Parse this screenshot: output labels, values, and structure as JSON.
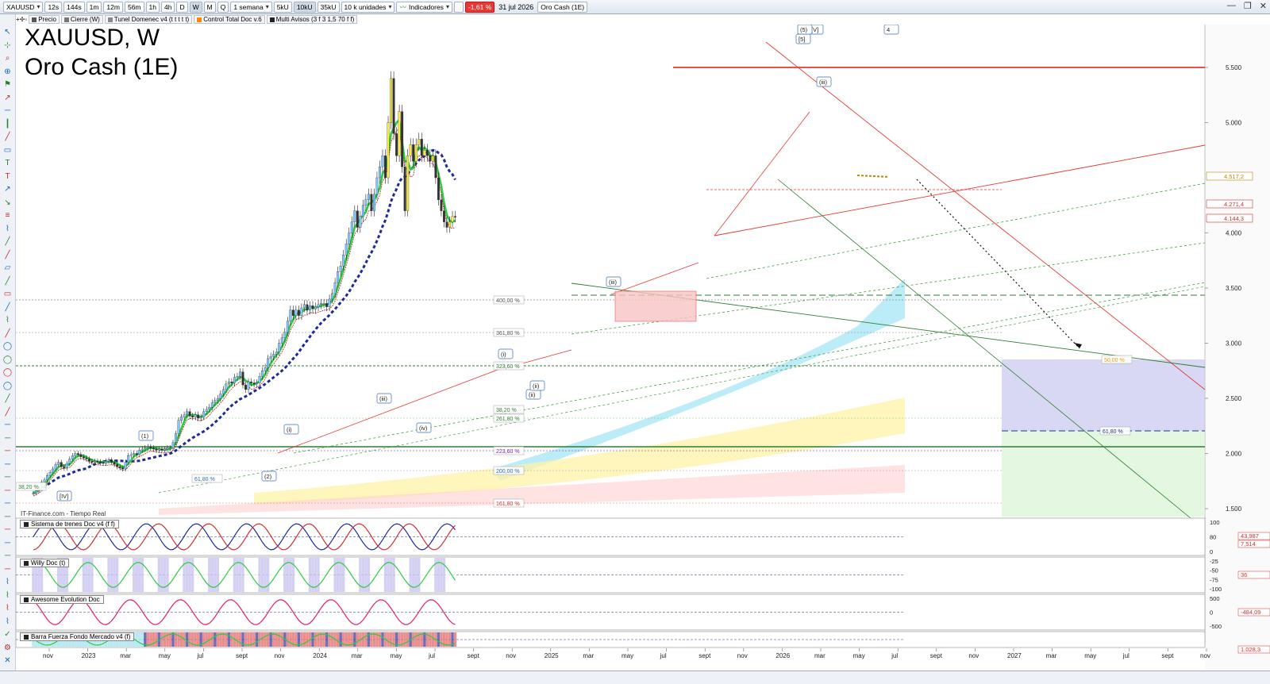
{
  "toolbar": {
    "symbol": "XAUUSD",
    "timeframes": [
      "12s",
      "144s",
      "1m",
      "12m",
      "56m",
      "1h",
      "4h",
      "D",
      "W",
      "M",
      "Q"
    ],
    "active_timeframe": "W",
    "period": "1 semana",
    "units": [
      "5kU",
      "10kU",
      "35kU"
    ],
    "active_unit": "10kU",
    "units_select": "10 k unidades",
    "indicators": "Indicadores",
    "change_pct": "-1,61 %",
    "date": "31 jul 2026",
    "instrument": "Oro Cash (1E)"
  },
  "tags": [
    {
      "label": "Precio",
      "color": "#555555"
    },
    {
      "label": "Cierre (W)",
      "color": "#777777"
    },
    {
      "label": "Tunel Domenec v4 (t t t t t)",
      "color": "#888888"
    },
    {
      "label": "Control Total Doc v.6",
      "color": "#ff8800"
    },
    {
      "label": "Multi Avisos (3 f 3 1,5 70 f f)",
      "color": "#222222"
    }
  ],
  "chart": {
    "title": "XAUUSD, W",
    "subtitle": "Oro Cash (1E)",
    "source": "IT-Finance.com - Tiempo Real",
    "price_axis": [
      "5.500",
      "5.000",
      "4.000",
      "3.500",
      "3.000",
      "2.500",
      "2.000",
      "1.500"
    ],
    "price_tags": [
      {
        "text": "4.517,2",
        "color": "#b8860b"
      },
      {
        "text": "4.271,4",
        "color": "#d32f2f"
      },
      {
        "text": "4.144,3",
        "color": "#d32f2f"
      }
    ],
    "fib_levels": [
      "400,00 %",
      "361,80 %",
      "323,60 %",
      "261,80 %",
      "223,60 %",
      "200,00 %",
      "161,80 %",
      "61,80 %",
      "50,00 %",
      "61,80 %",
      "38,20 %",
      "38,20 %"
    ],
    "wave_labels": [
      "(1)",
      "(2)",
      "[IV]",
      "(i)",
      "(ii)",
      "(iii)",
      "(iv)",
      "(iii)",
      "[V]",
      "(iii)",
      "[5]",
      "(5)",
      "(ii)",
      "(i)",
      "4"
    ],
    "time_axis": [
      "nov",
      "2023",
      "mar",
      "may",
      "jul",
      "sept",
      "nov",
      "2024",
      "mar",
      "may",
      "jul",
      "sept",
      "nov",
      "2025",
      "mar",
      "may",
      "jul",
      "sept",
      "nov",
      "2026",
      "mar",
      "may",
      "jul",
      "sept",
      "nov",
      "2027",
      "mar",
      "may",
      "jul",
      "sept",
      "nov"
    ]
  },
  "panels": [
    {
      "title": "Sistema de trenes Doc v4 (f f)",
      "axis": [
        "100",
        "80",
        "0"
      ],
      "values": [
        "43,987",
        "7,514"
      ]
    },
    {
      "title": "Willy Doc (t)",
      "axis": [
        "-25",
        "-50",
        "-75",
        "-100"
      ],
      "values": [
        "36"
      ]
    },
    {
      "title": "Awesome Evolution Doc",
      "axis": [
        "500",
        "0",
        "-500"
      ],
      "values": [
        "-484,09"
      ]
    },
    {
      "title": "Barra Fuerza Fondo Mercado v4 (f)",
      "axis": [],
      "values": [
        "1.028,3"
      ]
    }
  ]
}
